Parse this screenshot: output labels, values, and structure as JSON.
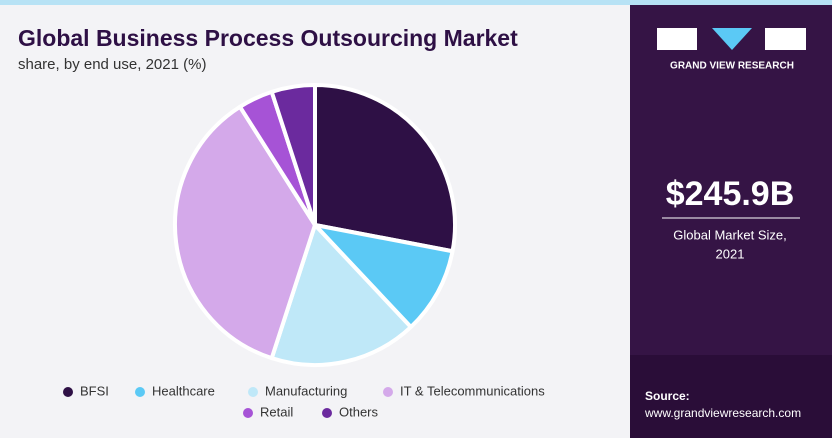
{
  "chart_data": {
    "type": "pie",
    "title": "Global Business Process Outsourcing Market",
    "subtitle": "share, by end use, 2021 (%)",
    "categories": [
      "BFSI",
      "Healthcare",
      "Manufacturing",
      "IT & Telecommunications",
      "Retail",
      "Others"
    ],
    "values": [
      28,
      10,
      17,
      36,
      4,
      5
    ],
    "colors": [
      "#2e1045",
      "#5bc9f5",
      "#bfe8f8",
      "#d4a9ea",
      "#a653d6",
      "#6b2a9e"
    ]
  },
  "sidebar": {
    "brand": "GRAND VIEW RESEARCH",
    "market_size": "$245.9B",
    "market_label_1": "Global Market Size,",
    "market_label_2": "2021",
    "source_label": "Source:",
    "source_url": "www.grandviewresearch.com"
  }
}
